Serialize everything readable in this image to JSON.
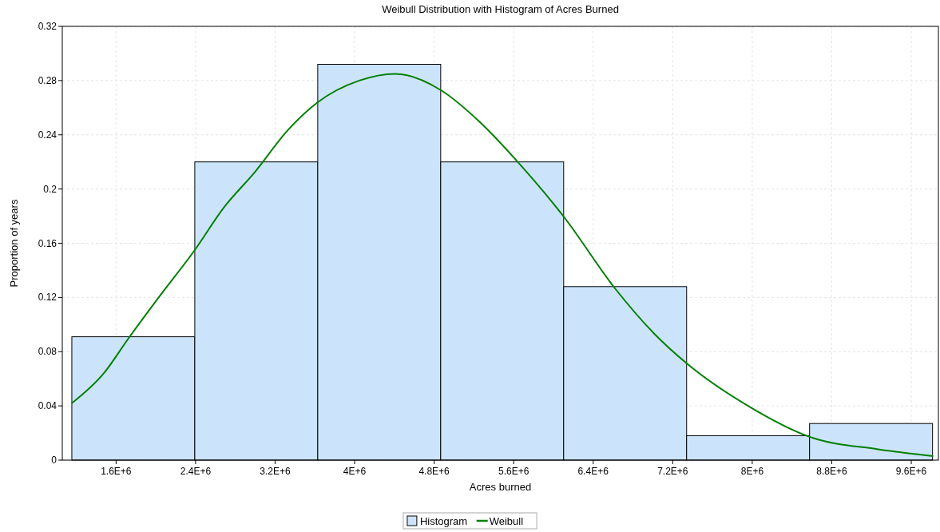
{
  "chart_data": {
    "type": "histogram",
    "title": "Weibull Distribution with Histogram of Acres Burned",
    "xlabel": "Acres burned",
    "ylabel": "Proportion of years",
    "xlim": [
      1059000,
      9873000
    ],
    "xticks": [
      {
        "value": 1600000,
        "label": "1.6E+6"
      },
      {
        "value": 2400000,
        "label": "2.4E+6"
      },
      {
        "value": 3200000,
        "label": "3.2E+6"
      },
      {
        "value": 4000000,
        "label": "4E+6"
      },
      {
        "value": 4800000,
        "label": "4.8E+6"
      },
      {
        "value": 5600000,
        "label": "5.6E+6"
      },
      {
        "value": 6400000,
        "label": "6.4E+6"
      },
      {
        "value": 7200000,
        "label": "7.2E+6"
      },
      {
        "value": 8000000,
        "label": "8E+6"
      },
      {
        "value": 8800000,
        "label": "8.8E+6"
      },
      {
        "value": 9600000,
        "label": "9.6E+6"
      }
    ],
    "ylim": [
      0,
      0.32
    ],
    "yticks": [
      0,
      0.04,
      0.08,
      0.12,
      0.16,
      0.2,
      0.24,
      0.28,
      0.32
    ],
    "grid": true,
    "legend": "bottom",
    "series": [
      {
        "name": "Histogram",
        "color": "#cce4fb",
        "bins": [
          1155000,
          2392000,
          3629000,
          4866000,
          6103000,
          7340000,
          8577000,
          9814000
        ],
        "values": [
          0.091,
          0.22,
          0.292,
          0.22,
          0.128,
          0.018,
          0.027
        ]
      },
      {
        "name": "Weibull",
        "type": "line",
        "color": "#008000",
        "x": [
          1155000,
          1476000,
          1717000,
          2039000,
          2392000,
          2681000,
          3002000,
          3323000,
          3629000,
          4046000,
          4408000,
          4866000,
          5251000,
          5653000,
          6110000,
          6616000,
          7018000,
          7347000,
          7981000,
          8584000,
          9266000,
          9821000
        ],
        "values": [
          0.042,
          0.064,
          0.089,
          0.121,
          0.155,
          0.186,
          0.213,
          0.243,
          0.264,
          0.28,
          0.285,
          0.273,
          0.25,
          0.219,
          0.179,
          0.127,
          0.093,
          0.071,
          0.039,
          0.017,
          0.008,
          0.003
        ]
      }
    ]
  }
}
